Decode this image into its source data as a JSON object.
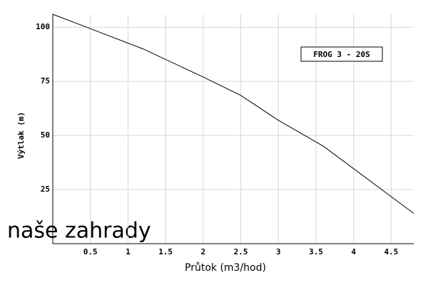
{
  "chart_data": {
    "type": "line",
    "x_label": "Průtok (m3/hod)",
    "y_label": "Výtlak (m)",
    "watermark": "naše zahrady",
    "x": [
      0,
      1.2,
      2,
      2.5,
      3,
      3.6,
      4.8
    ],
    "series": [
      {
        "name": "FROG 3 - 20S",
        "color": "#000000",
        "values": [
          106,
          90,
          77,
          68.5,
          57,
          45,
          14
        ]
      }
    ],
    "xlim": [
      0,
      4.8
    ],
    "ylim": [
      0,
      106
    ],
    "xticks": [
      0.5,
      1,
      1.5,
      2,
      2.5,
      3,
      3.5,
      4,
      4.5
    ],
    "yticks": [
      25,
      50,
      75,
      100
    ],
    "grid": true
  }
}
